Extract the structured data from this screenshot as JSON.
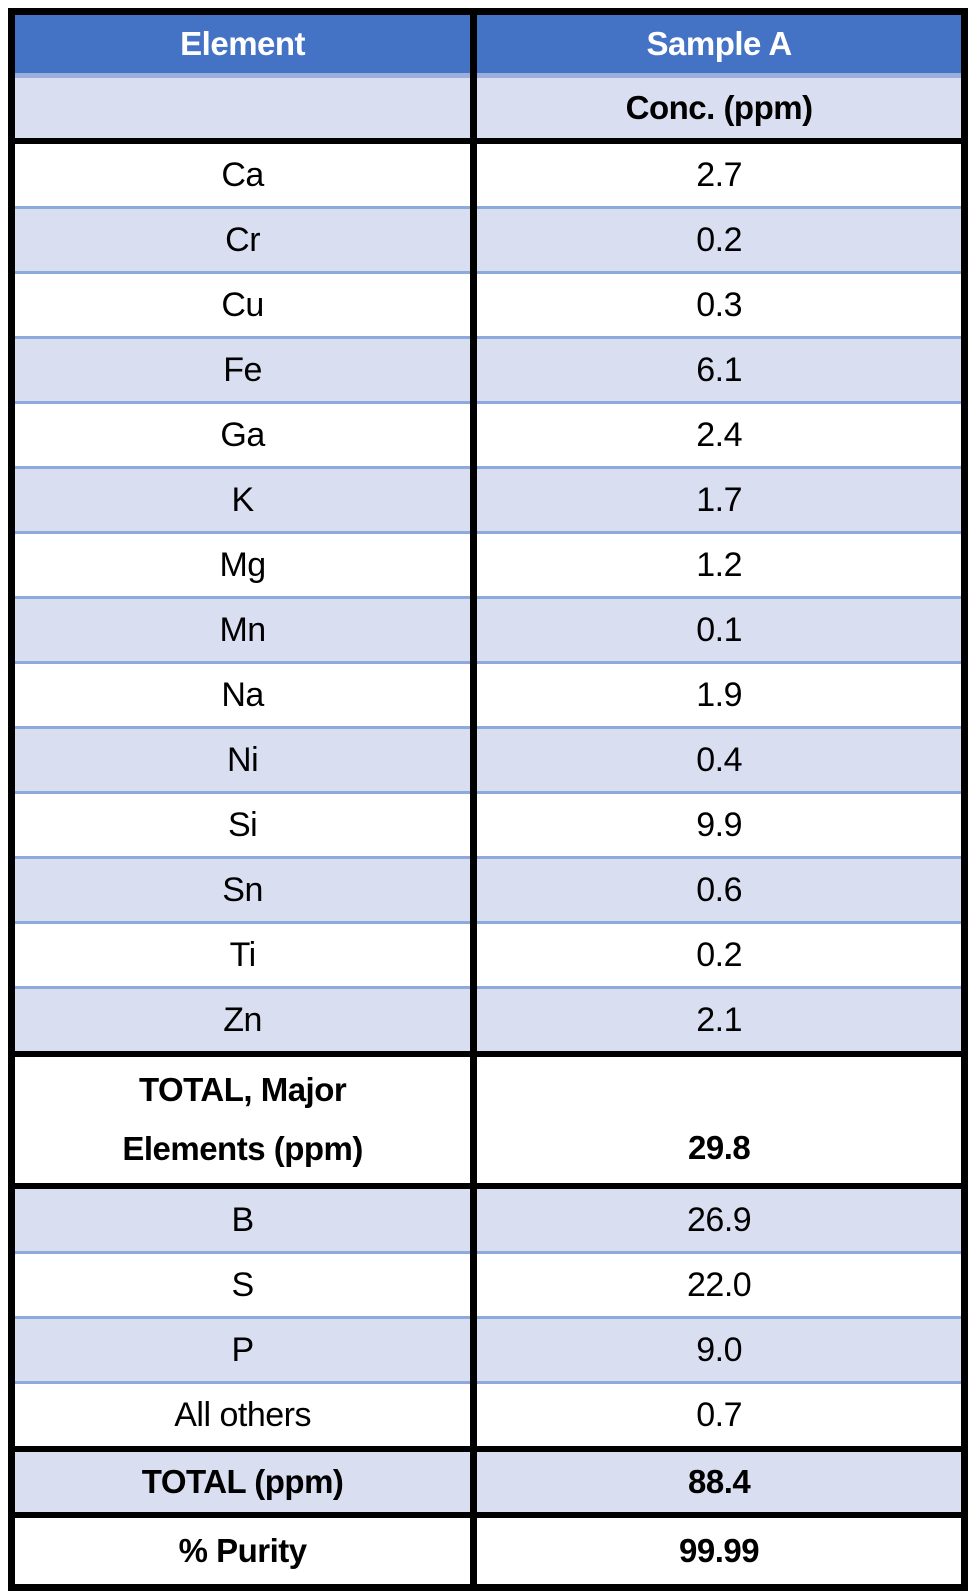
{
  "table": {
    "header": {
      "element_label": "Element",
      "sample_label": "Sample A",
      "conc_label": "Conc. (ppm)"
    },
    "rows": [
      {
        "el": "Ca",
        "conc": "2.7"
      },
      {
        "el": "Cr",
        "conc": "0.2"
      },
      {
        "el": "Cu",
        "conc": "0.3"
      },
      {
        "el": "Fe",
        "conc": "6.1"
      },
      {
        "el": "Ga",
        "conc": "2.4"
      },
      {
        "el": "K",
        "conc": "1.7"
      },
      {
        "el": "Mg",
        "conc": "1.2"
      },
      {
        "el": "Mn",
        "conc": "0.1"
      },
      {
        "el": "Na",
        "conc": "1.9"
      },
      {
        "el": "Ni",
        "conc": "0.4"
      },
      {
        "el": "Si",
        "conc": "9.9"
      },
      {
        "el": "Sn",
        "conc": "0.6"
      },
      {
        "el": "Ti",
        "conc": "0.2"
      },
      {
        "el": "Zn",
        "conc": "2.1"
      }
    ],
    "total_major": {
      "label_line1": "TOTAL, Major",
      "label_line2": "Elements (ppm)",
      "value": "29.8"
    },
    "minor_rows": [
      {
        "el": "B",
        "conc": "26.9"
      },
      {
        "el": "S",
        "conc": "22.0"
      },
      {
        "el": "P",
        "conc": "9.0"
      },
      {
        "el": "All others",
        "conc": "0.7"
      }
    ],
    "total_row": {
      "label": "TOTAL (ppm)",
      "value": "88.4"
    },
    "purity_row": {
      "label": "% Purity",
      "value": "99.99"
    },
    "colors": {
      "header_blue": "#4472C4",
      "header_text": "#FFFFFF",
      "row_shade": "#D9DFF1",
      "thin_border_blue": "#8EA9DB",
      "header_band": "#9BAFDB",
      "frame_black": "#000000"
    }
  },
  "chart_data": {
    "type": "table",
    "title": "",
    "columns": [
      "Element",
      "Sample A Conc. (ppm)"
    ],
    "rows": [
      [
        "Ca",
        2.7
      ],
      [
        "Cr",
        0.2
      ],
      [
        "Cu",
        0.3
      ],
      [
        "Fe",
        6.1
      ],
      [
        "Ga",
        2.4
      ],
      [
        "K",
        1.7
      ],
      [
        "Mg",
        1.2
      ],
      [
        "Mn",
        0.1
      ],
      [
        "Na",
        1.9
      ],
      [
        "Ni",
        0.4
      ],
      [
        "Si",
        9.9
      ],
      [
        "Sn",
        0.6
      ],
      [
        "Ti",
        0.2
      ],
      [
        "Zn",
        2.1
      ],
      [
        "TOTAL, Major Elements (ppm)",
        29.8
      ],
      [
        "B",
        26.9
      ],
      [
        "S",
        22.0
      ],
      [
        "P",
        9.0
      ],
      [
        "All others",
        0.7
      ],
      [
        "TOTAL (ppm)",
        88.4
      ],
      [
        "% Purity",
        99.99
      ]
    ]
  }
}
